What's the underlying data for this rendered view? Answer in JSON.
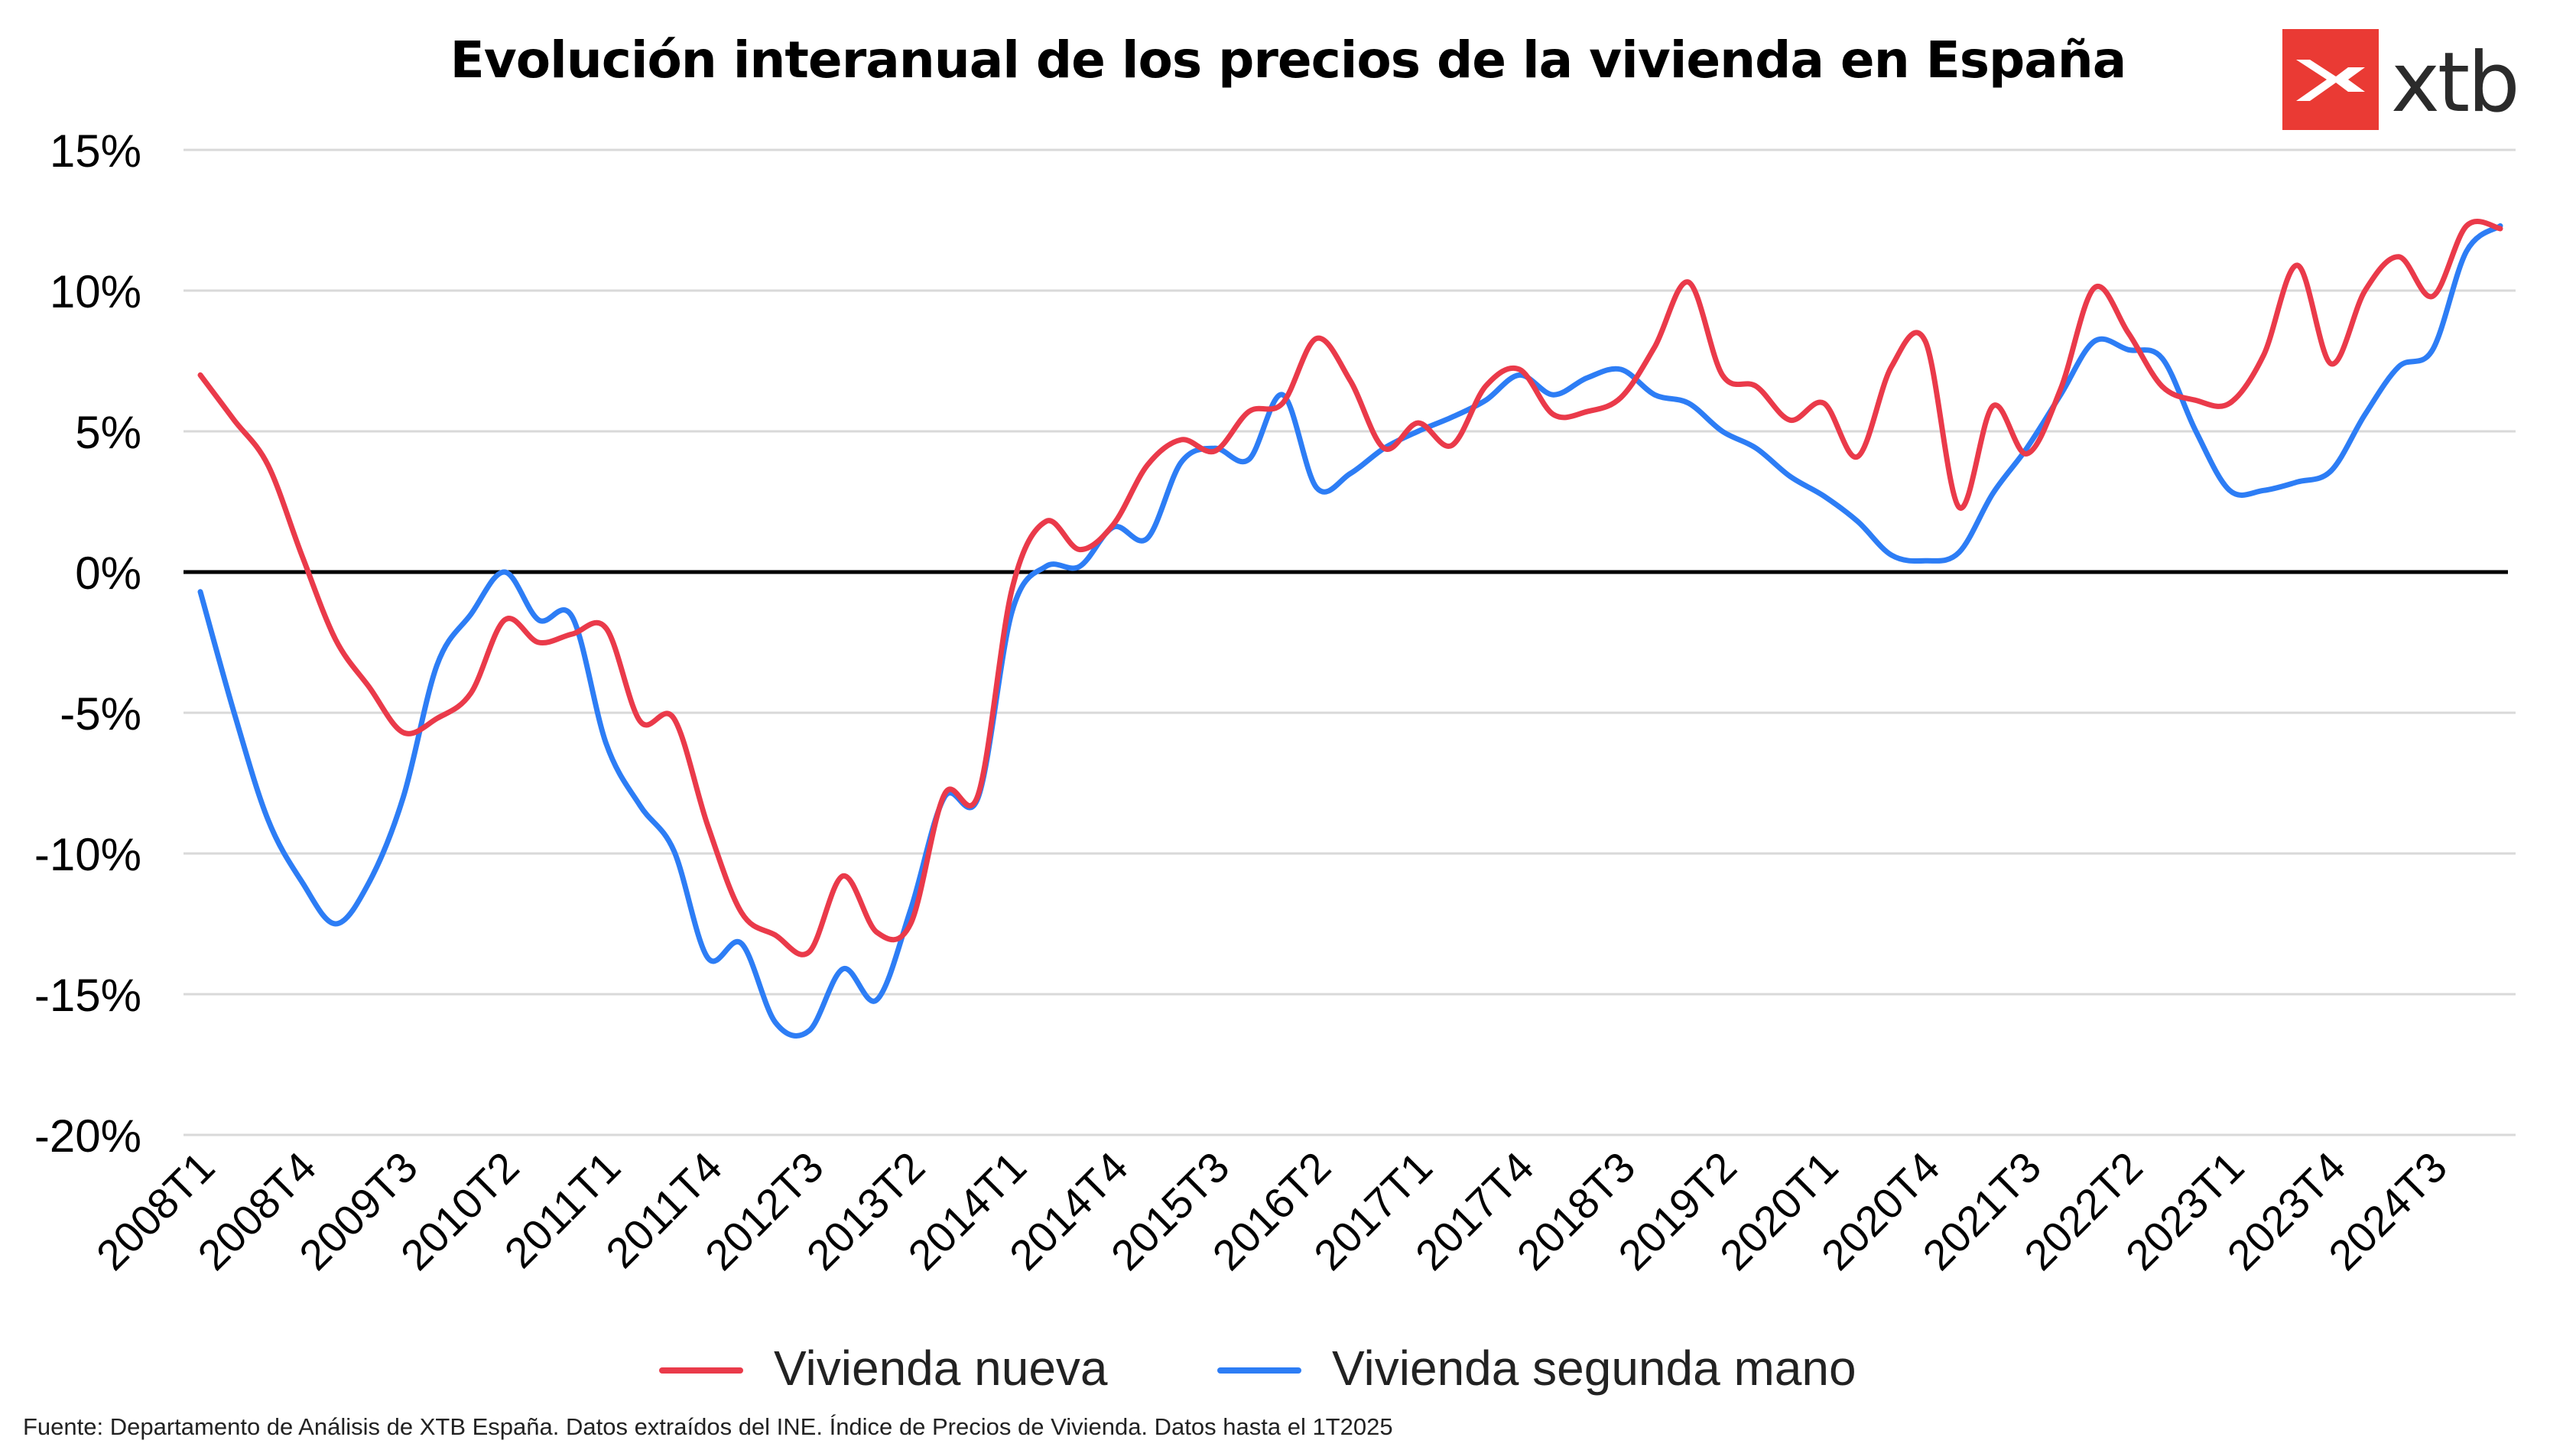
{
  "title": "Evolución interanual de los precios de la vivienda en España",
  "logo": {
    "text": "xtb",
    "brand_color": "#ea3a34"
  },
  "source": "Fuente: Departamento de Análisis de XTB España. Datos extraídos del INE. Índice de Precios de Vivienda. Datos hasta el 1T2025",
  "chart_data": {
    "type": "line",
    "title": "Evolución interanual de los precios de la vivienda en España",
    "xlabel": "",
    "ylabel": "",
    "ylim": [
      -20,
      15
    ],
    "yticks": [
      "15%",
      "10%",
      "5%",
      "0%",
      "-5%",
      "-10%",
      "-15%",
      "-20%"
    ],
    "xticks": [
      "2008T1",
      "2008T4",
      "2009T3",
      "2010T2",
      "2011T1",
      "2011T4",
      "2012T3",
      "2013T2",
      "2014T1",
      "2014T4",
      "2015T3",
      "2016T2",
      "2017T1",
      "2017T4",
      "2018T3",
      "2019T2",
      "2020T1",
      "2020T4",
      "2021T3",
      "2022T2",
      "2023T1",
      "2023T4",
      "2024T3"
    ],
    "grid": true,
    "legend_position": "bottom",
    "categories": [
      "2008T1",
      "2008T2",
      "2008T3",
      "2008T4",
      "2009T1",
      "2009T2",
      "2009T3",
      "2009T4",
      "2010T1",
      "2010T2",
      "2010T3",
      "2010T4",
      "2011T1",
      "2011T2",
      "2011T3",
      "2011T4",
      "2012T1",
      "2012T2",
      "2012T3",
      "2012T4",
      "2013T1",
      "2013T2",
      "2013T3",
      "2013T4",
      "2014T1",
      "2014T2",
      "2014T3",
      "2014T4",
      "2015T1",
      "2015T2",
      "2015T3",
      "2015T4",
      "2016T1",
      "2016T2",
      "2016T3",
      "2016T4",
      "2017T1",
      "2017T2",
      "2017T3",
      "2017T4",
      "2018T1",
      "2018T2",
      "2018T3",
      "2018T4",
      "2019T1",
      "2019T2",
      "2019T3",
      "2019T4",
      "2020T1",
      "2020T2",
      "2020T3",
      "2020T4",
      "2021T1",
      "2021T2",
      "2021T3",
      "2021T4",
      "2022T1",
      "2022T2",
      "2022T3",
      "2022T4",
      "2023T1",
      "2023T2",
      "2023T3",
      "2023T4",
      "2024T1",
      "2024T2",
      "2024T3",
      "2024T4",
      "2025T1"
    ],
    "series": [
      {
        "name": "Vivienda nueva",
        "color": "#ea3a4a",
        "values": [
          7.0,
          5.4,
          3.8,
          0.6,
          -2.4,
          -4.1,
          -5.7,
          -5.2,
          -4.3,
          -1.7,
          -2.5,
          -2.2,
          -2.0,
          -5.3,
          -5.2,
          -9.0,
          -12.1,
          -12.9,
          -13.5,
          -10.8,
          -12.8,
          -12.5,
          -7.9,
          -7.9,
          -0.6,
          1.8,
          0.8,
          1.7,
          3.8,
          4.7,
          4.3,
          5.7,
          6.0,
          8.3,
          6.8,
          4.4,
          5.3,
          4.5,
          6.6,
          7.2,
          5.6,
          5.7,
          6.2,
          8.0,
          10.3,
          7.0,
          6.6,
          5.4,
          6.0,
          4.1,
          7.3,
          8.2,
          2.3,
          5.9,
          4.2,
          6.5,
          10.1,
          8.5,
          6.6,
          6.1,
          6.0,
          7.7,
          10.9,
          7.4,
          10.0,
          11.2,
          9.8,
          12.3,
          12.2
        ]
      },
      {
        "name": "Vivienda segunda mano",
        "color": "#2d7df5",
        "values": [
          -0.7,
          -5.0,
          -8.8,
          -11.0,
          -12.5,
          -11.0,
          -8.0,
          -3.3,
          -1.5,
          0.0,
          -1.7,
          -1.6,
          -6.1,
          -8.3,
          -9.9,
          -13.7,
          -13.2,
          -16.0,
          -16.3,
          -14.1,
          -15.2,
          -12.0,
          -8.0,
          -8.0,
          -1.4,
          0.2,
          0.2,
          1.6,
          1.2,
          3.9,
          4.4,
          4.0,
          6.3,
          3.0,
          3.5,
          4.4,
          5.0,
          5.5,
          6.1,
          7.0,
          6.3,
          6.9,
          7.2,
          6.3,
          6.0,
          5.0,
          4.4,
          3.4,
          2.7,
          1.8,
          0.6,
          0.4,
          0.7,
          2.8,
          4.4,
          6.3,
          8.2,
          7.9,
          7.6,
          5.0,
          2.9,
          2.9,
          3.2,
          3.6,
          5.6,
          7.3,
          7.9,
          11.4,
          12.3
        ]
      }
    ]
  }
}
